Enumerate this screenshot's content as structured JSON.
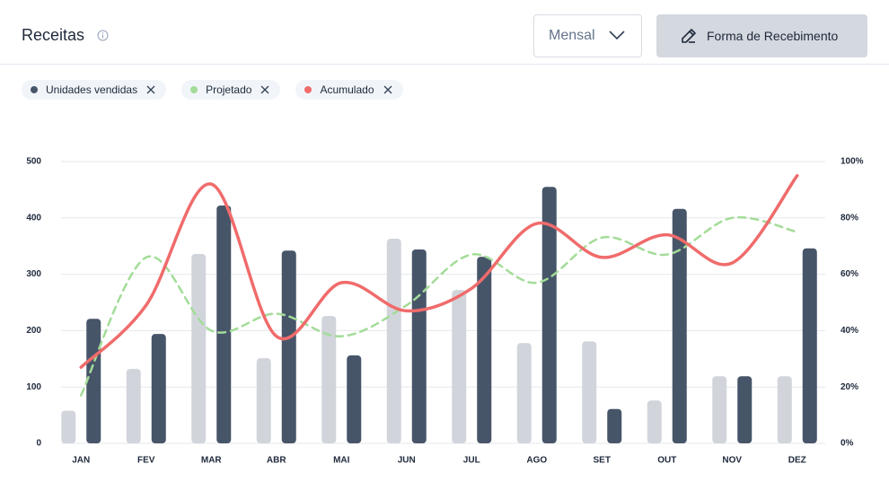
{
  "header": {
    "title": "Receitas",
    "period": "Mensal",
    "button": "Forma de Recebimento"
  },
  "chart_data": {
    "type": "bar",
    "categories": [
      "JAN",
      "FEV",
      "MAR",
      "ABR",
      "MAI",
      "JUN",
      "JUL",
      "AGO",
      "SET",
      "OUT",
      "NOV",
      "DEZ"
    ],
    "series": [
      {
        "type": "bar",
        "color": "#d1d5db",
        "values": [
          58,
          132,
          336,
          151,
          226,
          363,
          272,
          178,
          181,
          76,
          119,
          119
        ]
      },
      {
        "name": "Unidades vendidas",
        "type": "bar",
        "color": "#475569",
        "values": [
          221,
          194,
          422,
          342,
          156,
          344,
          331,
          455,
          61,
          416,
          119,
          346
        ]
      },
      {
        "name": "Projetado",
        "type": "line",
        "dash": true,
        "axis": "y2",
        "color": "#a3dc98",
        "values": [
          17,
          66,
          40,
          46,
          38,
          49,
          67,
          57,
          73,
          67,
          80,
          75
        ]
      },
      {
        "name": "Acumulado",
        "type": "line",
        "axis": "y2",
        "color": "#f06b6b",
        "values": [
          27,
          49,
          92,
          38,
          57,
          47,
          55,
          78,
          66,
          74,
          64,
          95
        ]
      }
    ],
    "ylim": [
      0,
      500
    ],
    "yticks": [
      0,
      100,
      200,
      300,
      400,
      500
    ],
    "y2lim": [
      0,
      100
    ],
    "y2ticks": [
      {
        "value": 0,
        "label": "0%"
      },
      {
        "value": 20,
        "label": "20%"
      },
      {
        "value": 40,
        "label": "40%"
      },
      {
        "value": 60,
        "label": "60%"
      },
      {
        "value": 80,
        "label": "80%"
      },
      {
        "value": 100,
        "label": "100%"
      }
    ],
    "grid": true
  }
}
